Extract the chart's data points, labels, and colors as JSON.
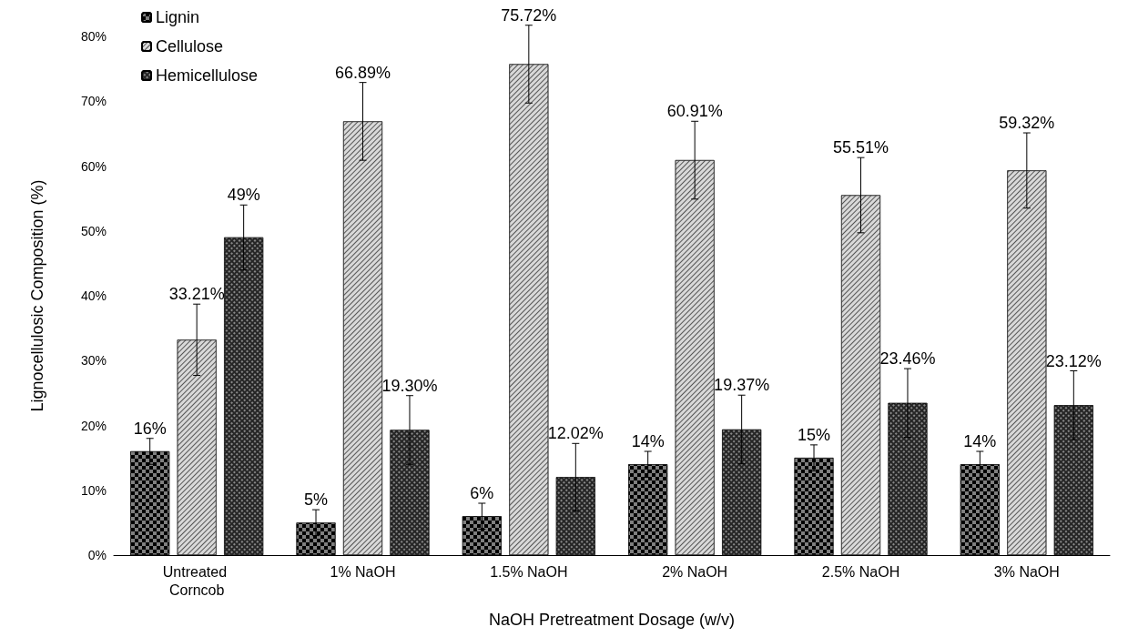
{
  "chart_data": {
    "type": "bar",
    "xlabel": "NaOH Pretreatment Dosage (w/v)",
    "ylabel": "Lignocellulosic Composition (%)",
    "categories": [
      "Untreated Corncob",
      "1% NaOH",
      "1.5% NaOH",
      "2% NaOH",
      "2.5% NaOH",
      "3% NaOH"
    ],
    "series": [
      {
        "name": "Lignin",
        "color": "#7f7f7f",
        "values": [
          16,
          5,
          6,
          14,
          15,
          14
        ],
        "errors": [
          2,
          2,
          2,
          2,
          2,
          2
        ],
        "value_labels": [
          "16%",
          "5%",
          "6%",
          "14%",
          "15%",
          "14%"
        ]
      },
      {
        "name": "Cellulose",
        "color": "#d9d9d9",
        "values": [
          33.21,
          66.89,
          75.72,
          60.91,
          55.51,
          59.32
        ],
        "errors": [
          5.5,
          6,
          6,
          6,
          5.8,
          5.8
        ],
        "value_labels": [
          "33.21%",
          "66.89%",
          "75.72%",
          "60.91%",
          "55.51%",
          "59.32%"
        ]
      },
      {
        "name": "Hemicellulose",
        "color": "#262626",
        "values": [
          49,
          19.3,
          12.02,
          19.37,
          23.46,
          23.12
        ],
        "errors": [
          5,
          5.3,
          5.2,
          5.3,
          5.3,
          5.3
        ],
        "value_labels": [
          "49%",
          "19.30%",
          "12.02%",
          "19.37%",
          "23.46%",
          "23.12%"
        ]
      }
    ],
    "ylim": [
      0,
      80
    ],
    "yticks": [
      {
        "value": 0,
        "label": "0%"
      },
      {
        "value": 10,
        "label": "10%"
      },
      {
        "value": 20,
        "label": "20%"
      },
      {
        "value": 30,
        "label": "30%"
      },
      {
        "value": 40,
        "label": "40%"
      },
      {
        "value": 50,
        "label": "50%"
      },
      {
        "value": 60,
        "label": "60%"
      },
      {
        "value": 70,
        "label": "70%"
      },
      {
        "value": 80,
        "label": "80%"
      }
    ],
    "grid": false,
    "legend": "top left"
  }
}
